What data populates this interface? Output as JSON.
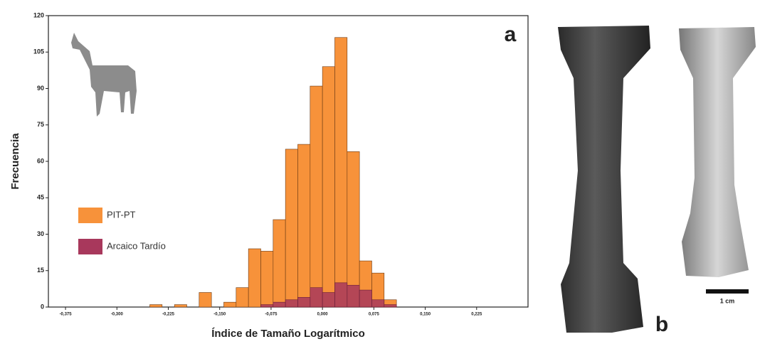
{
  "chart_data": {
    "type": "histogram",
    "x_label": "Índice de Tamaño Logarítmico",
    "y_label": "Frecuencia",
    "annotation": "a",
    "bins": [
      -0.252,
      -0.234,
      -0.216,
      -0.198,
      -0.18,
      -0.162,
      -0.144,
      -0.126,
      -0.108,
      -0.09,
      -0.072,
      -0.054,
      -0.036,
      -0.018,
      0,
      0.018,
      0.036,
      0.054,
      0.072,
      0.09,
      0.108
    ],
    "series": [
      {
        "name": "PIT-PT",
        "color": "#f7923a",
        "values": [
          1,
          0,
          1,
          0,
          6,
          0,
          2,
          8,
          24,
          23,
          36,
          65,
          67,
          91,
          99,
          111,
          64,
          19,
          14,
          3
        ]
      },
      {
        "name": "Arcaico Tardío",
        "color": "#a8385c",
        "values": [
          0,
          0,
          0,
          0,
          0,
          0,
          0,
          0,
          0,
          1,
          2,
          3,
          4,
          8,
          6,
          10,
          9,
          7,
          3,
          1
        ]
      }
    ],
    "xlim": [
      -0.4,
      0.3
    ],
    "ylim": [
      0,
      120
    ],
    "xticks": [
      {
        "value": -0.375,
        "label": "-0,375"
      },
      {
        "value": -0.3,
        "label": "-0,300"
      },
      {
        "value": -0.225,
        "label": "-0,225"
      },
      {
        "value": -0.15,
        "label": "-0,150"
      },
      {
        "value": -0.075,
        "label": "-0,075"
      },
      {
        "value": 0,
        "label": "0,000"
      },
      {
        "value": 0.075,
        "label": "0,075"
      },
      {
        "value": 0.15,
        "label": "0,150"
      },
      {
        "value": 0.225,
        "label": "0,225"
      }
    ],
    "yticks": [
      0,
      15,
      30,
      45,
      60,
      75,
      90,
      105,
      120
    ],
    "legend": "center left"
  },
  "figure": {
    "panel_label": "b",
    "scale_bar": "1 cm"
  }
}
